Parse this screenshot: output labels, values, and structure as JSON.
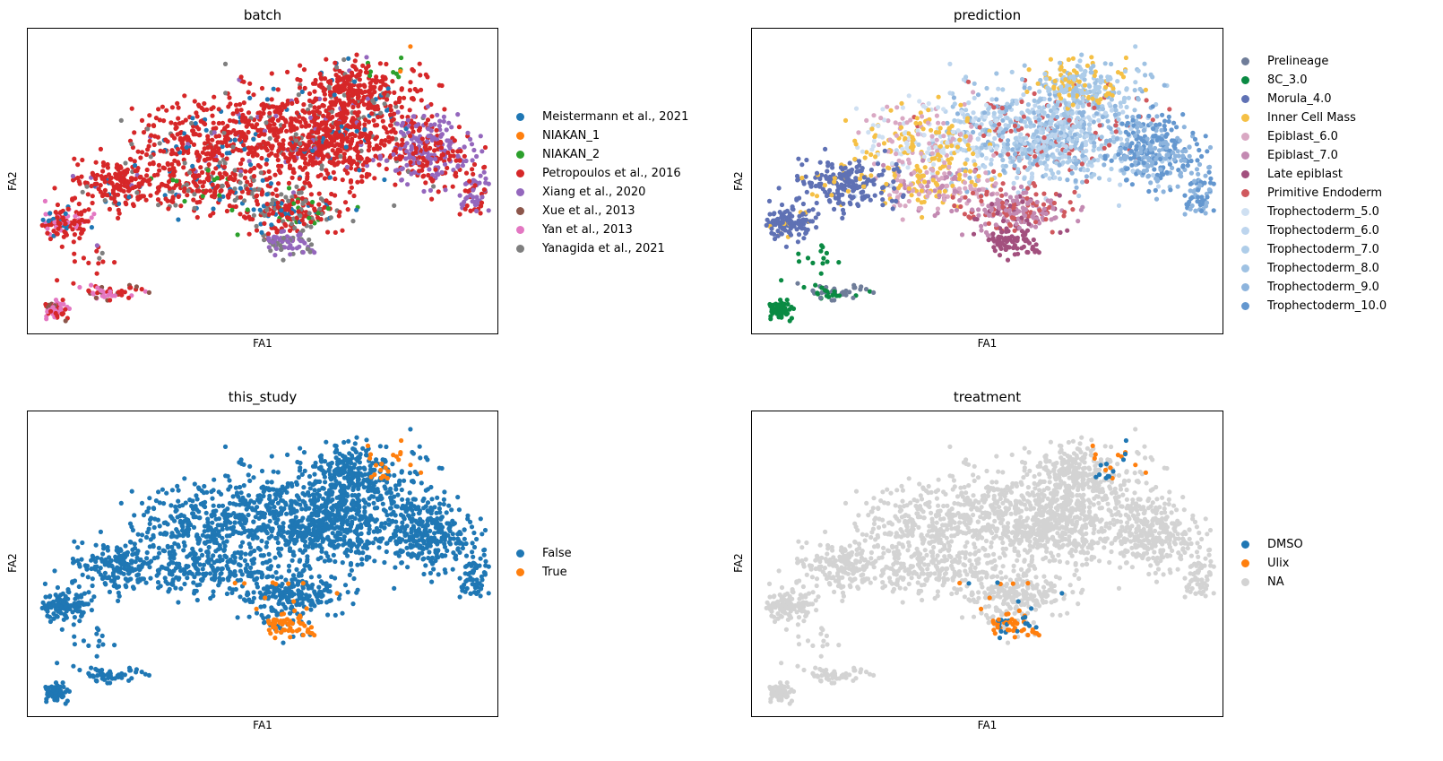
{
  "chart_data": [
    {
      "type": "scatter",
      "title": "batch",
      "xlabel": "FA1",
      "ylabel": "FA2",
      "grid": false,
      "legend_position": "right",
      "color_by": "batch",
      "legend": [
        {
          "label": "Meistermann et al., 2021",
          "color": "#1f77b4"
        },
        {
          "label": "NIAKAN_1",
          "color": "#ff7f0e"
        },
        {
          "label": "NIAKAN_2",
          "color": "#2ca02c"
        },
        {
          "label": "Petropoulos et al., 2016",
          "color": "#d62728"
        },
        {
          "label": "Xiang et al., 2020",
          "color": "#9467bd"
        },
        {
          "label": "Xue et al., 2013",
          "color": "#8c564b"
        },
        {
          "label": "Yan et al., 2013",
          "color": "#e377c2"
        },
        {
          "label": "Yanagida et al., 2021",
          "color": "#7f7f7f"
        }
      ]
    },
    {
      "type": "scatter",
      "title": "prediction",
      "xlabel": "FA1",
      "ylabel": "FA2",
      "grid": false,
      "legend_position": "right",
      "color_by": "prediction",
      "legend": [
        {
          "label": "Prelineage",
          "color": "#6f7d99"
        },
        {
          "label": "8C_3.0",
          "color": "#0a8a43"
        },
        {
          "label": "Morula_4.0",
          "color": "#5f71b4"
        },
        {
          "label": "Inner Cell Mass",
          "color": "#f5c045"
        },
        {
          "label": "Epiblast_6.0",
          "color": "#d9a8c3"
        },
        {
          "label": "Epiblast_7.0",
          "color": "#c38ab2"
        },
        {
          "label": "Late epiblast",
          "color": "#a2507e"
        },
        {
          "label": "Primitive Endoderm",
          "color": "#d0595e"
        },
        {
          "label": "Trophectoderm_5.0",
          "color": "#cfe0f2"
        },
        {
          "label": "Trophectoderm_6.0",
          "color": "#bdd5ee"
        },
        {
          "label": "Trophectoderm_7.0",
          "color": "#aecde9"
        },
        {
          "label": "Trophectoderm_8.0",
          "color": "#9fc2e3"
        },
        {
          "label": "Trophectoderm_9.0",
          "color": "#8db4dd"
        },
        {
          "label": "Trophectoderm_10.0",
          "color": "#6497cf"
        }
      ]
    },
    {
      "type": "scatter",
      "title": "this_study",
      "xlabel": "FA1",
      "ylabel": "FA2",
      "grid": false,
      "legend_position": "right",
      "color_by": "this_study",
      "legend": [
        {
          "label": "False",
          "color": "#1f77b4"
        },
        {
          "label": "True",
          "color": "#ff7f0e"
        }
      ]
    },
    {
      "type": "scatter",
      "title": "treatment",
      "xlabel": "FA1",
      "ylabel": "FA2",
      "grid": false,
      "legend_position": "right",
      "color_by": "treatment",
      "legend": [
        {
          "label": "DMSO",
          "color": "#1f77b4"
        },
        {
          "label": "Ulix",
          "color": "#ff7f0e"
        },
        {
          "label": "NA",
          "color": "#d3d3d3"
        }
      ]
    }
  ]
}
